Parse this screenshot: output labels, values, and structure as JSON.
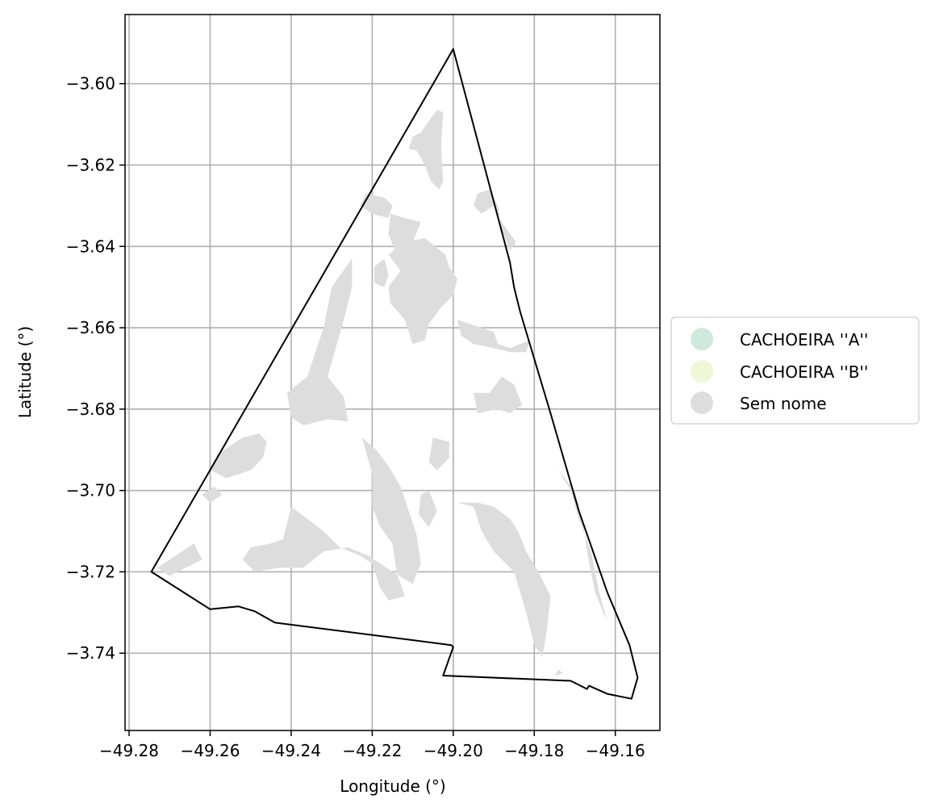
{
  "chart_data": {
    "type": "map",
    "xlabel": "Longitude (°)",
    "ylabel": "Latitude (°)",
    "xlim": [
      -49.281,
      -49.149
    ],
    "ylim": [
      -3.759,
      -3.583
    ],
    "grid": true,
    "x_ticks": [
      -49.28,
      -49.26,
      -49.24,
      -49.22,
      -49.2,
      -49.18,
      -49.16
    ],
    "x_tick_labels": [
      "−49.28",
      "−49.26",
      "−49.24",
      "−49.22",
      "−49.20",
      "−49.18",
      "−49.16"
    ],
    "y_ticks": [
      -3.6,
      -3.62,
      -3.64,
      -3.66,
      -3.68,
      -3.7,
      -3.72,
      -3.74
    ],
    "y_tick_labels": [
      "−3.60",
      "−3.62",
      "−3.64",
      "−3.66",
      "−3.68",
      "−3.70",
      "−3.72",
      "−3.74"
    ],
    "legend_placement": "right",
    "legend": [
      {
        "label": "CACHOEIRA ''A''",
        "color": "#cdeadc"
      },
      {
        "label": "CACHOEIRA ''B''",
        "color": "#eef7d8"
      },
      {
        "label": "Sem nome",
        "color": "#dddddd"
      }
    ],
    "boundary_polygon": [
      [
        -49.2,
        -3.5915
      ],
      [
        -49.186,
        -3.644
      ],
      [
        -49.185,
        -3.65
      ],
      [
        -49.1835,
        -3.656
      ],
      [
        -49.176,
        -3.681
      ],
      [
        -49.169,
        -3.705
      ],
      [
        -49.162,
        -3.725
      ],
      [
        -49.1565,
        -3.738
      ],
      [
        -49.1545,
        -3.746
      ],
      [
        -49.156,
        -3.7512
      ],
      [
        -49.162,
        -3.75
      ],
      [
        -49.1665,
        -3.748
      ],
      [
        -49.167,
        -3.7488
      ],
      [
        -49.171,
        -3.7468
      ],
      [
        -49.2025,
        -3.7455
      ],
      [
        -49.2,
        -3.7385
      ],
      [
        -49.2005,
        -3.738
      ],
      [
        -49.244,
        -3.7325
      ],
      [
        -49.249,
        -3.7297
      ],
      [
        -49.253,
        -3.7285
      ],
      [
        -49.26,
        -3.7292
      ],
      [
        -49.2745,
        -3.72
      ]
    ],
    "regions": [
      {
        "category": "Sem nome",
        "polygon": [
          [
            -49.2055,
            -3.6085
          ],
          [
            -49.204,
            -3.6065
          ],
          [
            -49.2025,
            -3.607
          ],
          [
            -49.203,
            -3.615
          ],
          [
            -49.2025,
            -3.624
          ],
          [
            -49.2035,
            -3.626
          ],
          [
            -49.2055,
            -3.624
          ],
          [
            -49.207,
            -3.62
          ],
          [
            -49.209,
            -3.6165
          ],
          [
            -49.211,
            -3.616
          ],
          [
            -49.21,
            -3.613
          ],
          [
            -49.208,
            -3.612
          ]
        ]
      },
      {
        "category": "Sem nome",
        "polygon": [
          [
            -49.2155,
            -3.632
          ],
          [
            -49.212,
            -3.633
          ],
          [
            -49.208,
            -3.634
          ],
          [
            -49.21,
            -3.639
          ],
          [
            -49.211,
            -3.644
          ],
          [
            -49.214,
            -3.642
          ],
          [
            -49.216,
            -3.637
          ]
        ]
      },
      {
        "category": "Sem nome",
        "polygon": [
          [
            -49.2215,
            -3.627
          ],
          [
            -49.217,
            -3.628
          ],
          [
            -49.215,
            -3.63
          ],
          [
            -49.216,
            -3.633
          ],
          [
            -49.22,
            -3.632
          ],
          [
            -49.223,
            -3.63
          ]
        ]
      },
      {
        "category": "Sem nome",
        "polygon": [
          [
            -49.202,
            -3.642
          ],
          [
            -49.207,
            -3.638
          ],
          [
            -49.212,
            -3.639
          ],
          [
            -49.216,
            -3.642
          ],
          [
            -49.213,
            -3.646
          ],
          [
            -49.216,
            -3.65
          ],
          [
            -49.2155,
            -3.654
          ],
          [
            -49.212,
            -3.658
          ],
          [
            -49.21,
            -3.664
          ],
          [
            -49.207,
            -3.663
          ],
          [
            -49.206,
            -3.659
          ],
          [
            -49.203,
            -3.655
          ],
          [
            -49.2,
            -3.652
          ],
          [
            -49.199,
            -3.648
          ],
          [
            -49.201,
            -3.645
          ]
        ]
      },
      {
        "category": "Sem nome",
        "polygon": [
          [
            -49.2195,
            -3.645
          ],
          [
            -49.217,
            -3.643
          ],
          [
            -49.216,
            -3.647
          ],
          [
            -49.217,
            -3.65
          ],
          [
            -49.2195,
            -3.649
          ]
        ]
      },
      {
        "category": "Sem nome",
        "polygon": [
          [
            -49.199,
            -3.658
          ],
          [
            -49.193,
            -3.66
          ],
          [
            -49.19,
            -3.661
          ],
          [
            -49.189,
            -3.664
          ],
          [
            -49.186,
            -3.665
          ],
          [
            -49.181,
            -3.663
          ],
          [
            -49.182,
            -3.666
          ],
          [
            -49.186,
            -3.666
          ],
          [
            -49.19,
            -3.665
          ],
          [
            -49.195,
            -3.664
          ],
          [
            -49.198,
            -3.662
          ]
        ]
      },
      {
        "category": "Sem nome",
        "polygon": [
          [
            -49.194,
            -3.627
          ],
          [
            -49.191,
            -3.626
          ],
          [
            -49.189,
            -3.63
          ],
          [
            -49.188,
            -3.636
          ],
          [
            -49.186,
            -3.641
          ],
          [
            -49.1845,
            -3.639
          ],
          [
            -49.188,
            -3.634
          ],
          [
            -49.19,
            -3.63
          ],
          [
            -49.193,
            -3.632
          ],
          [
            -49.195,
            -3.63
          ]
        ]
      },
      {
        "category": "Sem nome",
        "polygon": [
          [
            -49.225,
            -3.643
          ],
          [
            -49.23,
            -3.65
          ],
          [
            -49.232,
            -3.66
          ],
          [
            -49.236,
            -3.672
          ],
          [
            -49.241,
            -3.676
          ],
          [
            -49.24,
            -3.682
          ],
          [
            -49.237,
            -3.684
          ],
          [
            -49.231,
            -3.6825
          ],
          [
            -49.226,
            -3.683
          ],
          [
            -49.227,
            -3.677
          ],
          [
            -49.231,
            -3.672
          ],
          [
            -49.229,
            -3.665
          ],
          [
            -49.227,
            -3.658
          ],
          [
            -49.225,
            -3.65
          ]
        ]
      },
      {
        "category": "Sem nome",
        "polygon": [
          [
            -49.252,
            -3.687
          ],
          [
            -49.248,
            -3.686
          ],
          [
            -49.246,
            -3.688
          ],
          [
            -49.247,
            -3.692
          ],
          [
            -49.25,
            -3.695
          ],
          [
            -49.256,
            -3.697
          ],
          [
            -49.26,
            -3.695
          ],
          [
            -49.258,
            -3.691
          ]
        ]
      },
      {
        "category": "Sem nome",
        "polygon": [
          [
            -49.2225,
            -3.687
          ],
          [
            -49.22,
            -3.696
          ],
          [
            -49.22,
            -3.704
          ],
          [
            -49.218,
            -3.709
          ],
          [
            -49.215,
            -3.713
          ],
          [
            -49.214,
            -3.72
          ],
          [
            -49.212,
            -3.726
          ],
          [
            -49.216,
            -3.727
          ],
          [
            -49.218,
            -3.724
          ],
          [
            -49.22,
            -3.718
          ],
          [
            -49.223,
            -3.716
          ],
          [
            -49.228,
            -3.714
          ],
          [
            -49.232,
            -3.71
          ],
          [
            -49.236,
            -3.707
          ],
          [
            -49.24,
            -3.704
          ],
          [
            -49.241,
            -3.708
          ],
          [
            -49.242,
            -3.712
          ],
          [
            -49.245,
            -3.713
          ],
          [
            -49.25,
            -3.714
          ],
          [
            -49.252,
            -3.717
          ],
          [
            -49.249,
            -3.72
          ],
          [
            -49.243,
            -3.719
          ],
          [
            -49.237,
            -3.719
          ],
          [
            -49.232,
            -3.715
          ],
          [
            -49.226,
            -3.714
          ],
          [
            -49.221,
            -3.716
          ],
          [
            -49.215,
            -3.72
          ],
          [
            -49.21,
            -3.723
          ],
          [
            -49.208,
            -3.718
          ],
          [
            -49.209,
            -3.711
          ],
          [
            -49.211,
            -3.705
          ],
          [
            -49.213,
            -3.699
          ],
          [
            -49.216,
            -3.694
          ],
          [
            -49.219,
            -3.69
          ]
        ]
      },
      {
        "category": "Sem nome",
        "polygon": [
          [
            -49.208,
            -3.701
          ],
          [
            -49.206,
            -3.7
          ],
          [
            -49.204,
            -3.705
          ],
          [
            -49.206,
            -3.709
          ],
          [
            -49.2085,
            -3.706
          ]
        ]
      },
      {
        "category": "Sem nome",
        "polygon": [
          [
            -49.205,
            -3.687
          ],
          [
            -49.201,
            -3.688
          ],
          [
            -49.201,
            -3.692
          ],
          [
            -49.204,
            -3.695
          ],
          [
            -49.206,
            -3.693
          ]
        ]
      },
      {
        "category": "Sem nome",
        "polygon": [
          [
            -49.199,
            -3.703
          ],
          [
            -49.195,
            -3.704
          ],
          [
            -49.193,
            -3.71
          ],
          [
            -49.19,
            -3.715
          ],
          [
            -49.185,
            -3.72
          ],
          [
            -49.182,
            -3.73
          ],
          [
            -49.18,
            -3.738
          ],
          [
            -49.178,
            -3.741
          ],
          [
            -49.177,
            -3.735
          ],
          [
            -49.176,
            -3.726
          ],
          [
            -49.179,
            -3.72
          ],
          [
            -49.182,
            -3.715
          ],
          [
            -49.184,
            -3.71
          ],
          [
            -49.186,
            -3.707
          ],
          [
            -49.19,
            -3.704
          ],
          [
            -49.194,
            -3.703
          ]
        ]
      },
      {
        "category": "Sem nome",
        "polygon": [
          [
            -49.188,
            -3.672
          ],
          [
            -49.185,
            -3.674
          ],
          [
            -49.183,
            -3.679
          ],
          [
            -49.186,
            -3.681
          ],
          [
            -49.189,
            -3.68
          ],
          [
            -49.194,
            -3.681
          ],
          [
            -49.195,
            -3.676
          ],
          [
            -49.191,
            -3.676
          ]
        ]
      },
      {
        "category": "Sem nome",
        "polygon": [
          [
            -49.174,
            -3.695
          ],
          [
            -49.17,
            -3.7
          ],
          [
            -49.168,
            -3.708
          ],
          [
            -49.167,
            -3.715
          ],
          [
            -49.165,
            -3.725
          ],
          [
            -49.163,
            -3.73
          ],
          [
            -49.162,
            -3.732
          ],
          [
            -49.164,
            -3.725
          ],
          [
            -49.166,
            -3.715
          ],
          [
            -49.169,
            -3.707
          ],
          [
            -49.171,
            -3.7
          ]
        ]
      },
      {
        "category": "Sem nome",
        "polygon": [
          [
            -49.273,
            -3.719
          ],
          [
            -49.264,
            -3.713
          ],
          [
            -49.262,
            -3.717
          ],
          [
            -49.266,
            -3.719
          ],
          [
            -49.27,
            -3.721
          ]
        ]
      },
      {
        "category": "Sem nome",
        "polygon": [
          [
            -49.259,
            -3.699
          ],
          [
            -49.257,
            -3.701
          ],
          [
            -49.26,
            -3.703
          ],
          [
            -49.262,
            -3.701
          ]
        ]
      },
      {
        "category": "Sem nome",
        "polygon": [
          [
            -49.174,
            -3.744
          ],
          [
            -49.173,
            -3.745
          ],
          [
            -49.175,
            -3.7455
          ]
        ]
      }
    ]
  }
}
